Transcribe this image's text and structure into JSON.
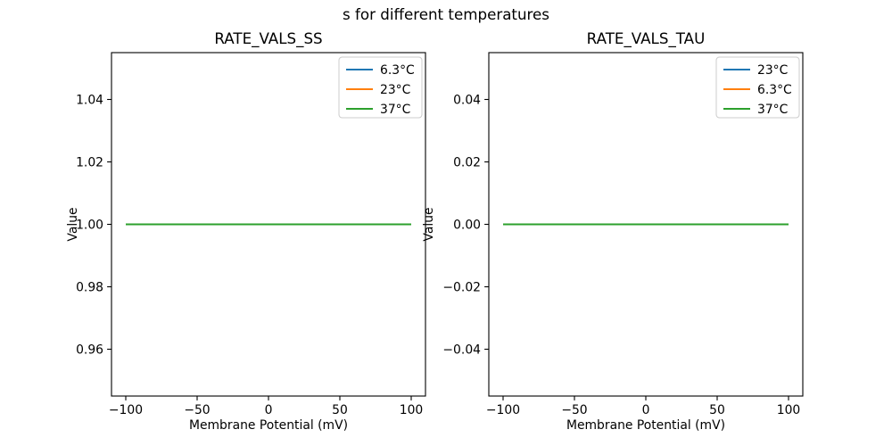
{
  "figure": {
    "suptitle": "s for different temperatures",
    "background_color": "#ffffff",
    "text_color": "#000000",
    "axis_color": "#000000",
    "legend_border_color": "#cccccc",
    "legend_fill_color": "#ffffff"
  },
  "chart_data": [
    {
      "type": "line",
      "title": "RATE_VALS_SS",
      "xlabel": "Membrane Potential (mV)",
      "ylabel": "Value",
      "xlim": [
        -110,
        110
      ],
      "ylim": [
        0.945,
        1.055
      ],
      "xticks": [
        -100,
        -50,
        0,
        50,
        100
      ],
      "xtick_labels": [
        "−100",
        "−50",
        "0",
        "50",
        "100"
      ],
      "yticks": [
        0.96,
        0.98,
        1.0,
        1.02,
        1.04
      ],
      "ytick_labels": [
        "0.96",
        "0.98",
        "1.00",
        "1.02",
        "1.04"
      ],
      "grid": false,
      "legend_position": "upper right",
      "series": [
        {
          "name": "6.3°C",
          "color": "#1f77b4",
          "x": [
            -100,
            100
          ],
          "y": [
            1.0,
            1.0
          ]
        },
        {
          "name": "23°C",
          "color": "#ff7f0e",
          "x": [
            -100,
            100
          ],
          "y": [
            1.0,
            1.0
          ]
        },
        {
          "name": "37°C",
          "color": "#2ca02c",
          "x": [
            -100,
            100
          ],
          "y": [
            1.0,
            1.0
          ]
        }
      ]
    },
    {
      "type": "line",
      "title": "RATE_VALS_TAU",
      "xlabel": "Membrane Potential (mV)",
      "ylabel": "Value",
      "xlim": [
        -110,
        110
      ],
      "ylim": [
        -0.055,
        0.055
      ],
      "xticks": [
        -100,
        -50,
        0,
        50,
        100
      ],
      "xtick_labels": [
        "−100",
        "−50",
        "0",
        "50",
        "100"
      ],
      "yticks": [
        -0.04,
        -0.02,
        0.0,
        0.02,
        0.04
      ],
      "ytick_labels": [
        "−0.04",
        "−0.02",
        "0.00",
        "0.02",
        "0.04"
      ],
      "grid": false,
      "legend_position": "upper right",
      "series": [
        {
          "name": "23°C",
          "color": "#1f77b4",
          "x": [
            -100,
            100
          ],
          "y": [
            0.0,
            0.0
          ]
        },
        {
          "name": "6.3°C",
          "color": "#ff7f0e",
          "x": [
            -100,
            100
          ],
          "y": [
            0.0,
            0.0
          ]
        },
        {
          "name": "37°C",
          "color": "#2ca02c",
          "x": [
            -100,
            100
          ],
          "y": [
            0.0,
            0.0
          ]
        }
      ]
    }
  ]
}
